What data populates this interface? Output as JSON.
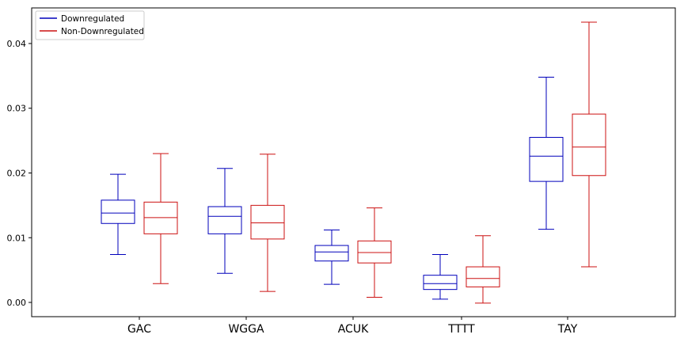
{
  "chart_data": {
    "type": "boxplot",
    "categories": [
      "GAC",
      "WGGA",
      "ACUK",
      "TTTT",
      "TAY"
    ],
    "yticks": [
      "0.00",
      "0.01",
      "0.02",
      "0.03",
      "0.04"
    ],
    "ylim": [
      -0.0022,
      0.0455
    ],
    "legend_position": "top-left",
    "series": [
      {
        "name": "Downregulated",
        "color": "#0000bb",
        "boxes": [
          {
            "whisker_low": 0.0074,
            "q1": 0.0122,
            "median": 0.0138,
            "q3": 0.0158,
            "whisker_high": 0.0198
          },
          {
            "whisker_low": 0.0045,
            "q1": 0.0106,
            "median": 0.0133,
            "q3": 0.0148,
            "whisker_high": 0.0207
          },
          {
            "whisker_low": 0.0028,
            "q1": 0.0064,
            "median": 0.0078,
            "q3": 0.0088,
            "whisker_high": 0.0112
          },
          {
            "whisker_low": 0.0005,
            "q1": 0.002,
            "median": 0.0029,
            "q3": 0.0042,
            "whisker_high": 0.0074
          },
          {
            "whisker_low": 0.0113,
            "q1": 0.0187,
            "median": 0.0226,
            "q3": 0.0255,
            "whisker_high": 0.0348
          }
        ]
      },
      {
        "name": "Non-Downregulated",
        "color": "#cc1111",
        "boxes": [
          {
            "whisker_low": 0.0029,
            "q1": 0.0106,
            "median": 0.0131,
            "q3": 0.0155,
            "whisker_high": 0.023
          },
          {
            "whisker_low": 0.0017,
            "q1": 0.0098,
            "median": 0.0123,
            "q3": 0.015,
            "whisker_high": 0.0229
          },
          {
            "whisker_low": 0.0008,
            "q1": 0.0061,
            "median": 0.0077,
            "q3": 0.0095,
            "whisker_high": 0.0146
          },
          {
            "whisker_low": -0.0001,
            "q1": 0.0024,
            "median": 0.0037,
            "q3": 0.0055,
            "whisker_high": 0.0103
          },
          {
            "whisker_low": 0.0055,
            "q1": 0.0196,
            "median": 0.024,
            "q3": 0.0291,
            "whisker_high": 0.0433
          }
        ]
      }
    ]
  }
}
